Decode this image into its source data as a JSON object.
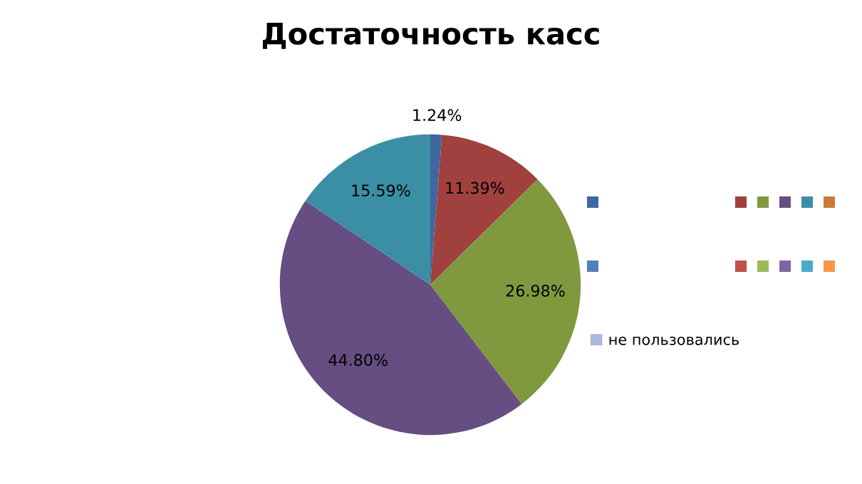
{
  "chart_data": {
    "type": "pie",
    "title": "Достаточность касс",
    "categories": [
      null,
      null,
      null,
      null,
      null,
      "не пользовались"
    ],
    "values": [
      1.24,
      11.39,
      26.98,
      44.8,
      15.59,
      0
    ],
    "value_labels": [
      "1.24%",
      "11.39%",
      "26.98%",
      "44.80%",
      "15.59%",
      null
    ],
    "colors": [
      "#3f67a0",
      "#a0403f",
      "#80993f",
      "#664d82",
      "#3b8fa5",
      "#a9b9d7"
    ],
    "legend": "right"
  }
}
